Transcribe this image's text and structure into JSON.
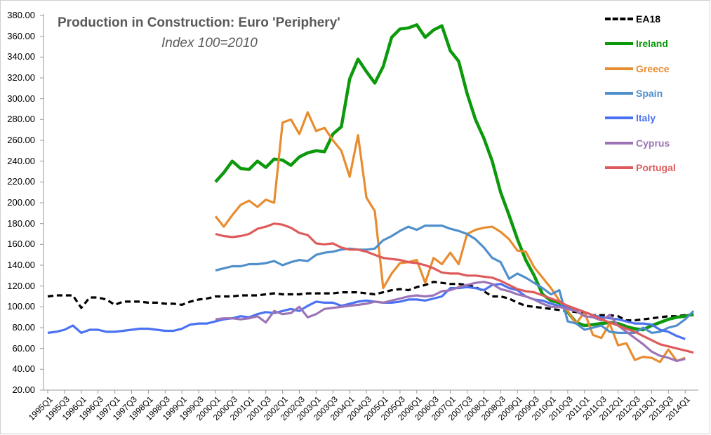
{
  "chart_data": {
    "type": "line",
    "title": "Production in Construction: Euro 'Periphery'",
    "subtitle": "Index 100=2010",
    "x_start": "1995Q1",
    "frequency": "quarterly",
    "x_tick_labels": [
      "1995Q1",
      "1995Q3",
      "1996Q1",
      "1996Q3",
      "1997Q1",
      "1997Q3",
      "1998Q1",
      "1998Q3",
      "1999Q1",
      "1999Q3",
      "2000Q1",
      "2000Q3",
      "2001Q1",
      "2001Q3",
      "2002Q1",
      "2002Q3",
      "2003Q1",
      "2003Q3",
      "2004Q1",
      "2004Q3",
      "2005Q1",
      "2005Q3",
      "2006Q1",
      "2006Q3",
      "2007Q1",
      "2007Q3",
      "2008Q1",
      "2008Q3",
      "2009Q1",
      "2009Q3",
      "2010Q1",
      "2010Q3",
      "2011Q1",
      "2011Q3",
      "2012Q1",
      "2012Q3",
      "2013Q1",
      "2013Q3",
      "2014Q1"
    ],
    "y_tick_labels": [
      "20.00",
      "40.00",
      "60.00",
      "80.00",
      "100.00",
      "120.00",
      "140.00",
      "160.00",
      "180.00",
      "200.00",
      "220.00",
      "240.00",
      "260.00",
      "280.00",
      "300.00",
      "320.00",
      "340.00",
      "360.00",
      "380.00"
    ],
    "ylim": [
      20,
      380
    ],
    "grid": false,
    "legend_position": "top-right",
    "series": [
      {
        "name": "EA18",
        "color": "#000000",
        "dashed": true,
        "start_index": 0,
        "values": [
          110,
          111,
          111,
          111,
          99,
          109,
          109,
          107,
          102,
          105,
          105,
          105,
          104,
          104,
          103,
          103,
          102,
          105,
          107,
          108,
          110,
          110,
          110,
          111,
          111,
          111,
          112,
          113,
          112,
          112,
          112,
          113,
          113,
          113,
          113,
          114,
          114,
          114,
          113,
          112,
          114,
          116,
          117,
          116,
          119,
          121,
          124,
          123,
          122,
          122,
          121,
          119,
          115,
          110,
          110,
          108,
          104,
          101,
          100,
          99,
          98,
          97,
          96,
          95,
          94,
          92,
          92,
          92,
          91,
          87,
          87,
          88,
          89,
          90,
          91,
          91,
          92,
          92
        ]
      },
      {
        "name": "Ireland",
        "color": "#0c990c",
        "dashed": false,
        "start_index": 20,
        "values": [
          220,
          229,
          240,
          233,
          232,
          240,
          234,
          242,
          241,
          236,
          244,
          248,
          250,
          249,
          266,
          273,
          319,
          338,
          326,
          315,
          331,
          359,
          367,
          368,
          371,
          359,
          366,
          370,
          346,
          336,
          305,
          280,
          262,
          240,
          210,
          188,
          165,
          145,
          130,
          112,
          106,
          104,
          95,
          85,
          82,
          83,
          84,
          85,
          84,
          81,
          79,
          78,
          82,
          85,
          88,
          90,
          91,
          93
        ]
      },
      {
        "name": "Greece",
        "color": "#e88c30",
        "dashed": false,
        "start_index": 20,
        "values": [
          187,
          177,
          188,
          198,
          202,
          196,
          203,
          200,
          277,
          280,
          266,
          287,
          269,
          272,
          260,
          250,
          225,
          265,
          205,
          192,
          118,
          132,
          142,
          143,
          145,
          123,
          147,
          141,
          152,
          141,
          170,
          174,
          176,
          177,
          172,
          165,
          154,
          153,
          138,
          128,
          118,
          106,
          96,
          84,
          95,
          73,
          70,
          84,
          63,
          65,
          49,
          52,
          51,
          47,
          59,
          48,
          51
        ]
      },
      {
        "name": "Spain",
        "color": "#4f8fcb",
        "dashed": false,
        "start_index": 20,
        "values": [
          135,
          137,
          139,
          139,
          141,
          141,
          142,
          144,
          140,
          143,
          145,
          144,
          150,
          152,
          153,
          155,
          156,
          155,
          155,
          156,
          164,
          168,
          173,
          177,
          174,
          178,
          178,
          178,
          175,
          173,
          170,
          165,
          157,
          147,
          143,
          127,
          132,
          128,
          123,
          118,
          112,
          116,
          86,
          84,
          78,
          80,
          82,
          76,
          75,
          75,
          75,
          80,
          75,
          76,
          80,
          82,
          88,
          96
        ]
      },
      {
        "name": "Italy",
        "color": "#4a72f2",
        "dashed": false,
        "start_index": 0,
        "values": [
          75,
          76,
          78,
          82,
          75,
          78,
          78,
          76,
          76,
          77,
          78,
          79,
          79,
          78,
          77,
          77,
          79,
          83,
          84,
          84,
          86,
          88,
          89,
          91,
          90,
          93,
          95,
          94,
          96,
          98,
          96,
          101,
          105,
          104,
          104,
          101,
          103,
          105,
          106,
          105,
          104,
          104,
          105,
          107,
          107,
          106,
          108,
          110,
          118,
          118,
          119,
          118,
          116,
          121,
          122,
          118,
          116,
          110,
          107,
          106,
          103,
          101,
          100,
          98,
          95,
          92,
          90,
          89,
          88,
          86,
          84,
          84,
          83,
          78,
          76,
          72,
          69
        ]
      },
      {
        "name": "Cyprus",
        "color": "#9c74b6",
        "dashed": false,
        "start_index": 20,
        "values": [
          88,
          89,
          89,
          88,
          89,
          91,
          85,
          96,
          93,
          94,
          100,
          90,
          93,
          98,
          99,
          100,
          101,
          102,
          103,
          105,
          104,
          106,
          108,
          110,
          111,
          110,
          111,
          115,
          116,
          119,
          121,
          123,
          124,
          122,
          117,
          115,
          112,
          110,
          107,
          103,
          100,
          100,
          98,
          96,
          91,
          90,
          87,
          92,
          82,
          76,
          70,
          64,
          57,
          53,
          51,
          48,
          50
        ]
      },
      {
        "name": "Portugal",
        "color": "#df5b5b",
        "dashed": false,
        "start_index": 20,
        "values": [
          170,
          168,
          167,
          168,
          170,
          175,
          177,
          180,
          179,
          176,
          171,
          169,
          161,
          160,
          161,
          157,
          155,
          155,
          153,
          150,
          147,
          146,
          145,
          143,
          142,
          140,
          137,
          133,
          132,
          132,
          130,
          130,
          129,
          128,
          125,
          121,
          117,
          115,
          114,
          111,
          108,
          105,
          101,
          98,
          95,
          92,
          88,
          85,
          82,
          79,
          76,
          72,
          68,
          64,
          62,
          60,
          58,
          56
        ]
      }
    ]
  }
}
